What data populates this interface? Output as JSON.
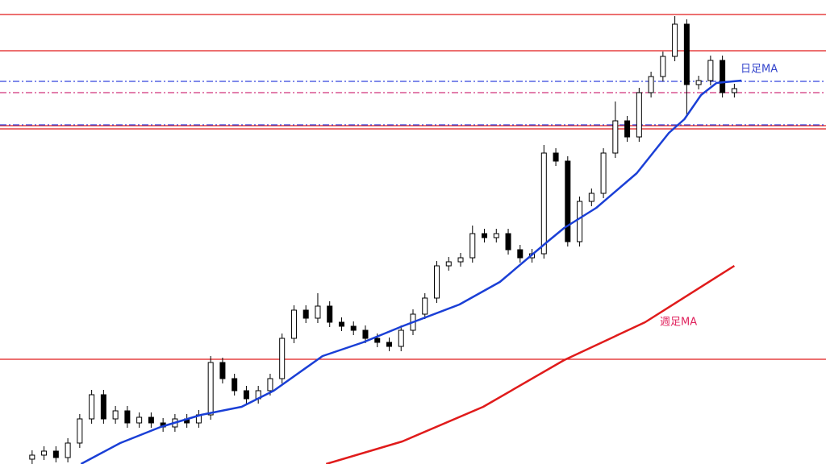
{
  "chart_data": {
    "type": "candlestick",
    "xlim": [
      -2.7,
      66.7
    ],
    "ylim": [
      0,
      576
    ],
    "candles": {
      "color_up": "#ffffff",
      "color_down": "#000000",
      "open": [
        6,
        11,
        16,
        8,
        26,
        56,
        86,
        56,
        66,
        51,
        58,
        51,
        46,
        56,
        51,
        61,
        126,
        106,
        91,
        81,
        91,
        106,
        156,
        191,
        181,
        196,
        176,
        171,
        166,
        156,
        151,
        146,
        166,
        186,
        206,
        246,
        251,
        256,
        286,
        281,
        286,
        266,
        256,
        261,
        386,
        376,
        276,
        326,
        336,
        386,
        426,
        406,
        461,
        481,
        506,
        546,
        471,
        476,
        501,
        461
      ],
      "high": [
        17,
        22,
        22,
        32,
        62,
        92,
        92,
        72,
        72,
        64,
        64,
        57,
        62,
        62,
        67,
        134,
        132,
        112,
        97,
        97,
        112,
        162,
        197,
        197,
        212,
        202,
        182,
        177,
        172,
        162,
        157,
        172,
        192,
        212,
        252,
        257,
        262,
        296,
        292,
        292,
        292,
        272,
        267,
        396,
        392,
        382,
        332,
        342,
        392,
        450,
        432,
        467,
        487,
        512,
        556,
        552,
        482,
        507,
        507,
        472
      ],
      "low": [
        0,
        5,
        2,
        2,
        20,
        50,
        50,
        50,
        45,
        45,
        45,
        40,
        40,
        45,
        45,
        55,
        100,
        85,
        75,
        75,
        85,
        100,
        150,
        175,
        175,
        170,
        165,
        160,
        150,
        145,
        140,
        140,
        160,
        180,
        200,
        240,
        245,
        250,
        275,
        275,
        260,
        250,
        250,
        255,
        370,
        270,
        270,
        320,
        330,
        380,
        400,
        400,
        455,
        475,
        500,
        431,
        465,
        470,
        455,
        455
      ],
      "close": [
        11,
        16,
        8,
        26,
        56,
        86,
        56,
        66,
        51,
        58,
        51,
        46,
        56,
        51,
        61,
        126,
        106,
        91,
        81,
        91,
        106,
        156,
        191,
        181,
        196,
        176,
        171,
        166,
        156,
        151,
        146,
        166,
        186,
        206,
        246,
        251,
        256,
        286,
        281,
        286,
        266,
        256,
        261,
        386,
        376,
        276,
        326,
        336,
        386,
        426,
        406,
        461,
        481,
        506,
        546,
        471,
        476,
        501,
        461,
        466
      ]
    },
    "series": [
      {
        "name": "日足MA",
        "color": "#1a3fd6",
        "x": [
          4.1,
          7.4,
          10.8,
          14.2,
          17.6,
          20.3,
          24.4,
          27.8,
          31.1,
          35.9,
          39.3,
          43.3,
          44.7,
          47.4,
          50.8,
          53.5,
          54.8,
          56.2,
          57.5,
          59.6
        ],
        "values": [
          0,
          26,
          46,
          61,
          71,
          91,
          134,
          151,
          171,
          198,
          226,
          276,
          293,
          318,
          361,
          411,
          428,
          458,
          473,
          476
        ]
      },
      {
        "name": "週足MA",
        "color": "#e01b1b",
        "x": [
          24.7,
          31.1,
          37.9,
          44.7,
          51.5,
          59
        ],
        "values": [
          0,
          28,
          71,
          129,
          176,
          246
        ]
      }
    ],
    "hlines": [
      {
        "value": 558,
        "color": "#e01b1b",
        "style": "solid"
      },
      {
        "value": 513,
        "color": "#e01b1b",
        "style": "solid"
      },
      {
        "value": 420,
        "color": "#e01b1b",
        "style": "solid"
      },
      {
        "value": 416,
        "color": "#e01b1b",
        "style": "solid"
      },
      {
        "value": 130,
        "color": "#e01b1b",
        "style": "solid"
      },
      {
        "value": 475,
        "color": "#3344dd",
        "style": "dashdot"
      },
      {
        "value": 421,
        "color": "#3344dd",
        "style": "dashdot"
      },
      {
        "value": 461,
        "color": "#d0337a",
        "style": "dashdot"
      }
    ]
  }
}
